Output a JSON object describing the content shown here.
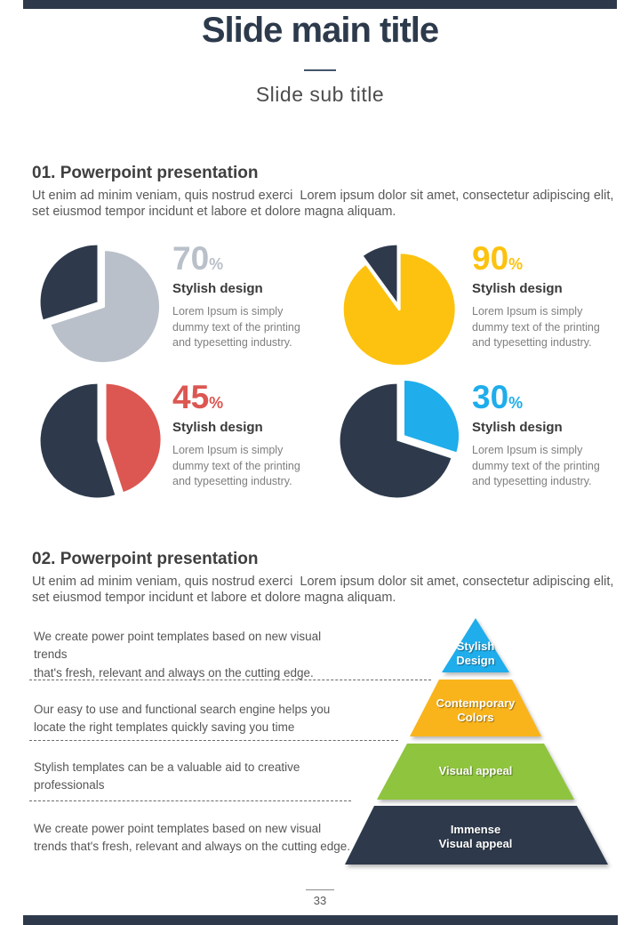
{
  "theme": {
    "navy": "#2e3a4c",
    "gray": "#b9c0c9",
    "yellow": "#fcc20f",
    "red": "#dc5752",
    "blue": "#1fadeb",
    "green": "#8fc43e"
  },
  "header": {
    "title": "Slide main title",
    "subtitle": "Slide sub title"
  },
  "sections": [
    {
      "heading": "01. Powerpoint presentation",
      "body": "Ut enim ad minim veniam, quis nostrud exerci  Lorem ipsum dolor sit amet, consectetur adipiscing elit,\nset eiusmod tempor incidunt et labore et dolore magna aliquam."
    },
    {
      "heading": "02. Powerpoint presentation",
      "body": "Ut enim ad minim veniam, quis nostrud exerci  Lorem ipsum dolor sit amet, consectetur adipiscing elit,\nset eiusmod tempor incidunt et labore et dolore magna aliquam."
    }
  ],
  "chart_data": [
    {
      "type": "pie",
      "title": "Stylish design",
      "value_label": "70",
      "unit": "%",
      "percent": 70,
      "series": [
        {
          "name": "Stylish design",
          "value": 70
        },
        {
          "name": "remainder",
          "value": 30
        }
      ],
      "slice_color": "#b9c0c9",
      "remainder_color": "#2e3a4c",
      "description": "Lorem Ipsum is simply dummy text of the printing and typesetting industry."
    },
    {
      "type": "pie",
      "title": "Stylish design",
      "value_label": "90",
      "unit": "%",
      "percent": 90,
      "series": [
        {
          "name": "Stylish design",
          "value": 90
        },
        {
          "name": "remainder",
          "value": 10
        }
      ],
      "slice_color": "#fcc20f",
      "remainder_color": "#2e3a4c",
      "description": "Lorem Ipsum is simply dummy text of the printing and typesetting industry."
    },
    {
      "type": "pie",
      "title": "Stylish design",
      "value_label": "45",
      "unit": "%",
      "percent": 45,
      "series": [
        {
          "name": "Stylish design",
          "value": 45
        },
        {
          "name": "remainder",
          "value": 55
        }
      ],
      "slice_color": "#dc5752",
      "remainder_color": "#2e3a4c",
      "description": "Lorem Ipsum is simply dummy text of the printing and typesetting industry."
    },
    {
      "type": "pie",
      "title": "Stylish design",
      "value_label": "30",
      "unit": "%",
      "percent": 30,
      "series": [
        {
          "name": "Stylish design",
          "value": 30
        },
        {
          "name": "remainder",
          "value": 70
        }
      ],
      "slice_color": "#1fadeb",
      "remainder_color": "#2e3a4c",
      "description": "Lorem Ipsum is simply dummy text of the printing and typesetting industry."
    }
  ],
  "features": [
    {
      "text": "We create power point templates based on new visual trends\nthat's fresh, relevant and always on the cutting edge."
    },
    {
      "text": "Our easy to use and functional search engine helps you\nlocate the right templates quickly saving you time"
    },
    {
      "text": "Stylish templates can be a valuable aid to creative\nprofessionals"
    },
    {
      "text": "We create power point templates based on new visual\ntrends that's fresh, relevant and always on the cutting edge."
    }
  ],
  "pyramid": {
    "levels": [
      {
        "label": "Stylish\nDesign",
        "color": "#1fadeb"
      },
      {
        "label": "Contemporary\nColors",
        "color": "#f9b41c"
      },
      {
        "label": "Visual appeal",
        "color": "#8fc43e"
      },
      {
        "label": "Immense\nVisual appeal",
        "color": "#2e3a4c"
      }
    ]
  },
  "footer": {
    "page_number": "33"
  }
}
